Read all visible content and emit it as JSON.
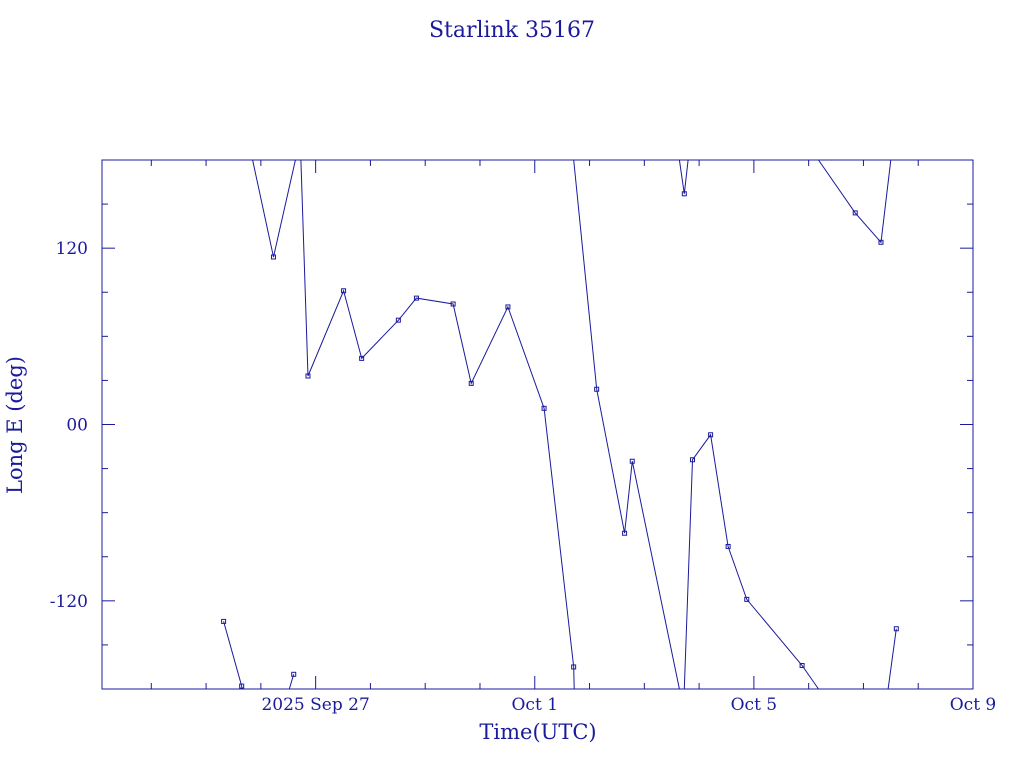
{
  "chart_data": {
    "type": "line",
    "title": "Starlink 35167",
    "xlabel": "Time(UTC)",
    "ylabel": "Long E (deg)",
    "x_unit": "days",
    "xlim": [
      -3.9,
      12.0
    ],
    "ylim": [
      -180,
      180
    ],
    "x_ticks": [
      {
        "value": 0,
        "label": "2025 Sep 27"
      },
      {
        "value": 4,
        "label": "Oct  1"
      },
      {
        "value": 8,
        "label": "Oct  5"
      },
      {
        "value": 12,
        "label": "Oct  9"
      }
    ],
    "y_ticks": [
      {
        "value": 120,
        "label": "120"
      },
      {
        "value": 0,
        "label": "00"
      },
      {
        "value": -120,
        "label": "-120"
      }
    ],
    "grid": false,
    "color": "#1a1a9c",
    "series": [
      {
        "points": [
          [
            -1.15,
            180
          ],
          [
            -0.77,
            114
          ],
          [
            -0.37,
            180
          ],
          [
            -0.27,
            180
          ],
          [
            -0.14,
            33
          ],
          [
            0.51,
            91
          ],
          [
            0.84,
            45
          ],
          [
            1.51,
            71
          ],
          [
            1.84,
            86
          ],
          [
            2.51,
            82
          ],
          [
            2.84,
            28
          ],
          [
            3.51,
            80
          ],
          [
            4.17,
            11
          ],
          [
            4.71,
            -165
          ],
          [
            4.72,
            -180
          ]
        ]
      },
      {
        "points": [
          [
            4.71,
            180
          ],
          [
            5.13,
            24
          ],
          [
            5.64,
            -74
          ],
          [
            5.78,
            -25
          ],
          [
            6.64,
            -180
          ]
        ]
      },
      {
        "points": [
          [
            6.64,
            180
          ],
          [
            6.73,
            157
          ],
          [
            6.8,
            180
          ]
        ]
      },
      {
        "points": [
          [
            6.73,
            -180
          ],
          [
            6.88,
            -24
          ],
          [
            7.21,
            -7
          ],
          [
            7.53,
            -83
          ],
          [
            7.87,
            -119
          ],
          [
            8.88,
            -164
          ],
          [
            9.18,
            -180
          ]
        ]
      },
      {
        "points": [
          [
            9.18,
            180
          ],
          [
            9.85,
            144
          ],
          [
            10.32,
            124
          ],
          [
            10.5,
            180
          ]
        ]
      },
      {
        "points": [
          [
            -1.68,
            -134
          ],
          [
            -1.35,
            -178
          ],
          [
            -1.34,
            -180
          ]
        ]
      },
      {
        "points": [
          [
            -0.48,
            -180
          ],
          [
            -0.4,
            -170
          ]
        ]
      },
      {
        "points": [
          [
            10.45,
            -180
          ],
          [
            10.6,
            -139
          ]
        ]
      }
    ]
  }
}
